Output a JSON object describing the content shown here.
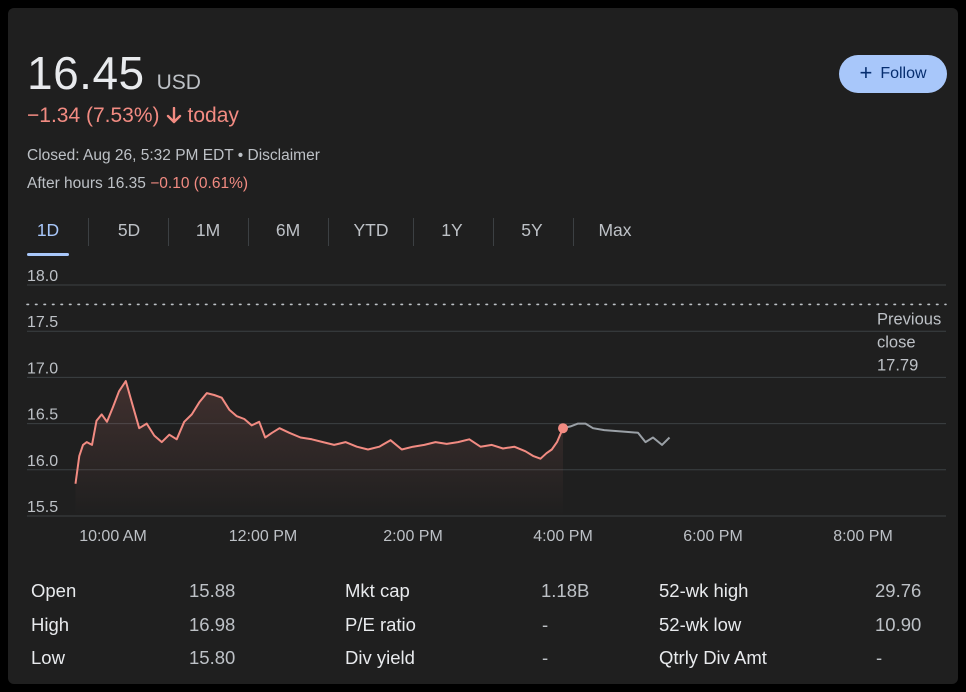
{
  "quote": {
    "price": "16.45",
    "currency": "USD",
    "change_text": "−1.34 (7.53%)",
    "today_label": "today",
    "closed_text": "Closed: Aug 26, 5:32 PM EDT • Disclaimer",
    "after_hours_label": "After hours 16.35",
    "after_hours_change": "−0.10 (0.61%)"
  },
  "follow_button": {
    "label": "Follow"
  },
  "tabs": [
    {
      "label": "1D",
      "active": true
    },
    {
      "label": "5D"
    },
    {
      "label": "1M"
    },
    {
      "label": "6M"
    },
    {
      "label": "YTD"
    },
    {
      "label": "1Y"
    },
    {
      "label": "5Y"
    },
    {
      "label": "Max"
    }
  ],
  "colors": {
    "down": "#f28b82",
    "after_hours_line": "#9aa0a6",
    "accent": "#a8c7fa",
    "grid": "#3c4043"
  },
  "chart_data": {
    "type": "line",
    "yticks": [
      "18.0",
      "17.5",
      "17.0",
      "16.5",
      "16.0",
      "15.5"
    ],
    "xticks": [
      "10:00 AM",
      "12:00 PM",
      "2:00 PM",
      "4:00 PM",
      "6:00 PM",
      "8:00 PM"
    ],
    "ylim": [
      15.5,
      18.0
    ],
    "previous_close": 17.79,
    "previous_close_label": [
      "Previous",
      "close",
      "17.79"
    ],
    "regular_session": [
      [
        9.5,
        15.85
      ],
      [
        9.55,
        16.15
      ],
      [
        9.6,
        16.27
      ],
      [
        9.65,
        16.3
      ],
      [
        9.72,
        16.27
      ],
      [
        9.78,
        16.53
      ],
      [
        9.85,
        16.6
      ],
      [
        9.92,
        16.52
      ],
      [
        10.0,
        16.68
      ],
      [
        10.08,
        16.85
      ],
      [
        10.17,
        16.96
      ],
      [
        10.25,
        16.73
      ],
      [
        10.35,
        16.45
      ],
      [
        10.45,
        16.5
      ],
      [
        10.55,
        16.37
      ],
      [
        10.65,
        16.3
      ],
      [
        10.75,
        16.38
      ],
      [
        10.85,
        16.33
      ],
      [
        10.95,
        16.52
      ],
      [
        11.05,
        16.6
      ],
      [
        11.15,
        16.73
      ],
      [
        11.25,
        16.83
      ],
      [
        11.35,
        16.81
      ],
      [
        11.45,
        16.78
      ],
      [
        11.55,
        16.65
      ],
      [
        11.65,
        16.58
      ],
      [
        11.75,
        16.55
      ],
      [
        11.85,
        16.48
      ],
      [
        11.95,
        16.52
      ],
      [
        12.03,
        16.35
      ],
      [
        12.12,
        16.4
      ],
      [
        12.22,
        16.45
      ],
      [
        12.35,
        16.4
      ],
      [
        12.5,
        16.35
      ],
      [
        12.65,
        16.33
      ],
      [
        12.8,
        16.3
      ],
      [
        12.95,
        16.27
      ],
      [
        13.1,
        16.3
      ],
      [
        13.25,
        16.25
      ],
      [
        13.4,
        16.22
      ],
      [
        13.55,
        16.25
      ],
      [
        13.7,
        16.32
      ],
      [
        13.85,
        16.22
      ],
      [
        14.0,
        16.25
      ],
      [
        14.15,
        16.27
      ],
      [
        14.3,
        16.3
      ],
      [
        14.45,
        16.28
      ],
      [
        14.6,
        16.3
      ],
      [
        14.75,
        16.33
      ],
      [
        14.9,
        16.25
      ],
      [
        15.05,
        16.27
      ],
      [
        15.2,
        16.23
      ],
      [
        15.35,
        16.25
      ],
      [
        15.5,
        16.2
      ],
      [
        15.6,
        16.15
      ],
      [
        15.7,
        16.12
      ],
      [
        15.78,
        16.18
      ],
      [
        15.85,
        16.22
      ],
      [
        15.92,
        16.3
      ],
      [
        16.0,
        16.45
      ]
    ],
    "after_hours": [
      [
        16.0,
        16.45
      ],
      [
        16.1,
        16.47
      ],
      [
        16.2,
        16.5
      ],
      [
        16.3,
        16.5
      ],
      [
        16.4,
        16.45
      ],
      [
        16.55,
        16.43
      ],
      [
        16.7,
        16.42
      ],
      [
        16.85,
        16.41
      ],
      [
        17.0,
        16.4
      ],
      [
        17.1,
        16.3
      ],
      [
        17.2,
        16.35
      ],
      [
        17.32,
        16.27
      ],
      [
        17.42,
        16.35
      ]
    ]
  },
  "stats": [
    {
      "label": "Open",
      "value": "15.88"
    },
    {
      "label": "High",
      "value": "16.98"
    },
    {
      "label": "Low",
      "value": "15.80"
    },
    {
      "label": "Mkt cap",
      "value": "1.18B"
    },
    {
      "label": "P/E ratio",
      "value": "-"
    },
    {
      "label": "Div yield",
      "value": "-"
    },
    {
      "label": "52-wk high",
      "value": "29.76"
    },
    {
      "label": "52-wk low",
      "value": "10.90"
    },
    {
      "label": "Qtrly Div Amt",
      "value": "-"
    }
  ]
}
